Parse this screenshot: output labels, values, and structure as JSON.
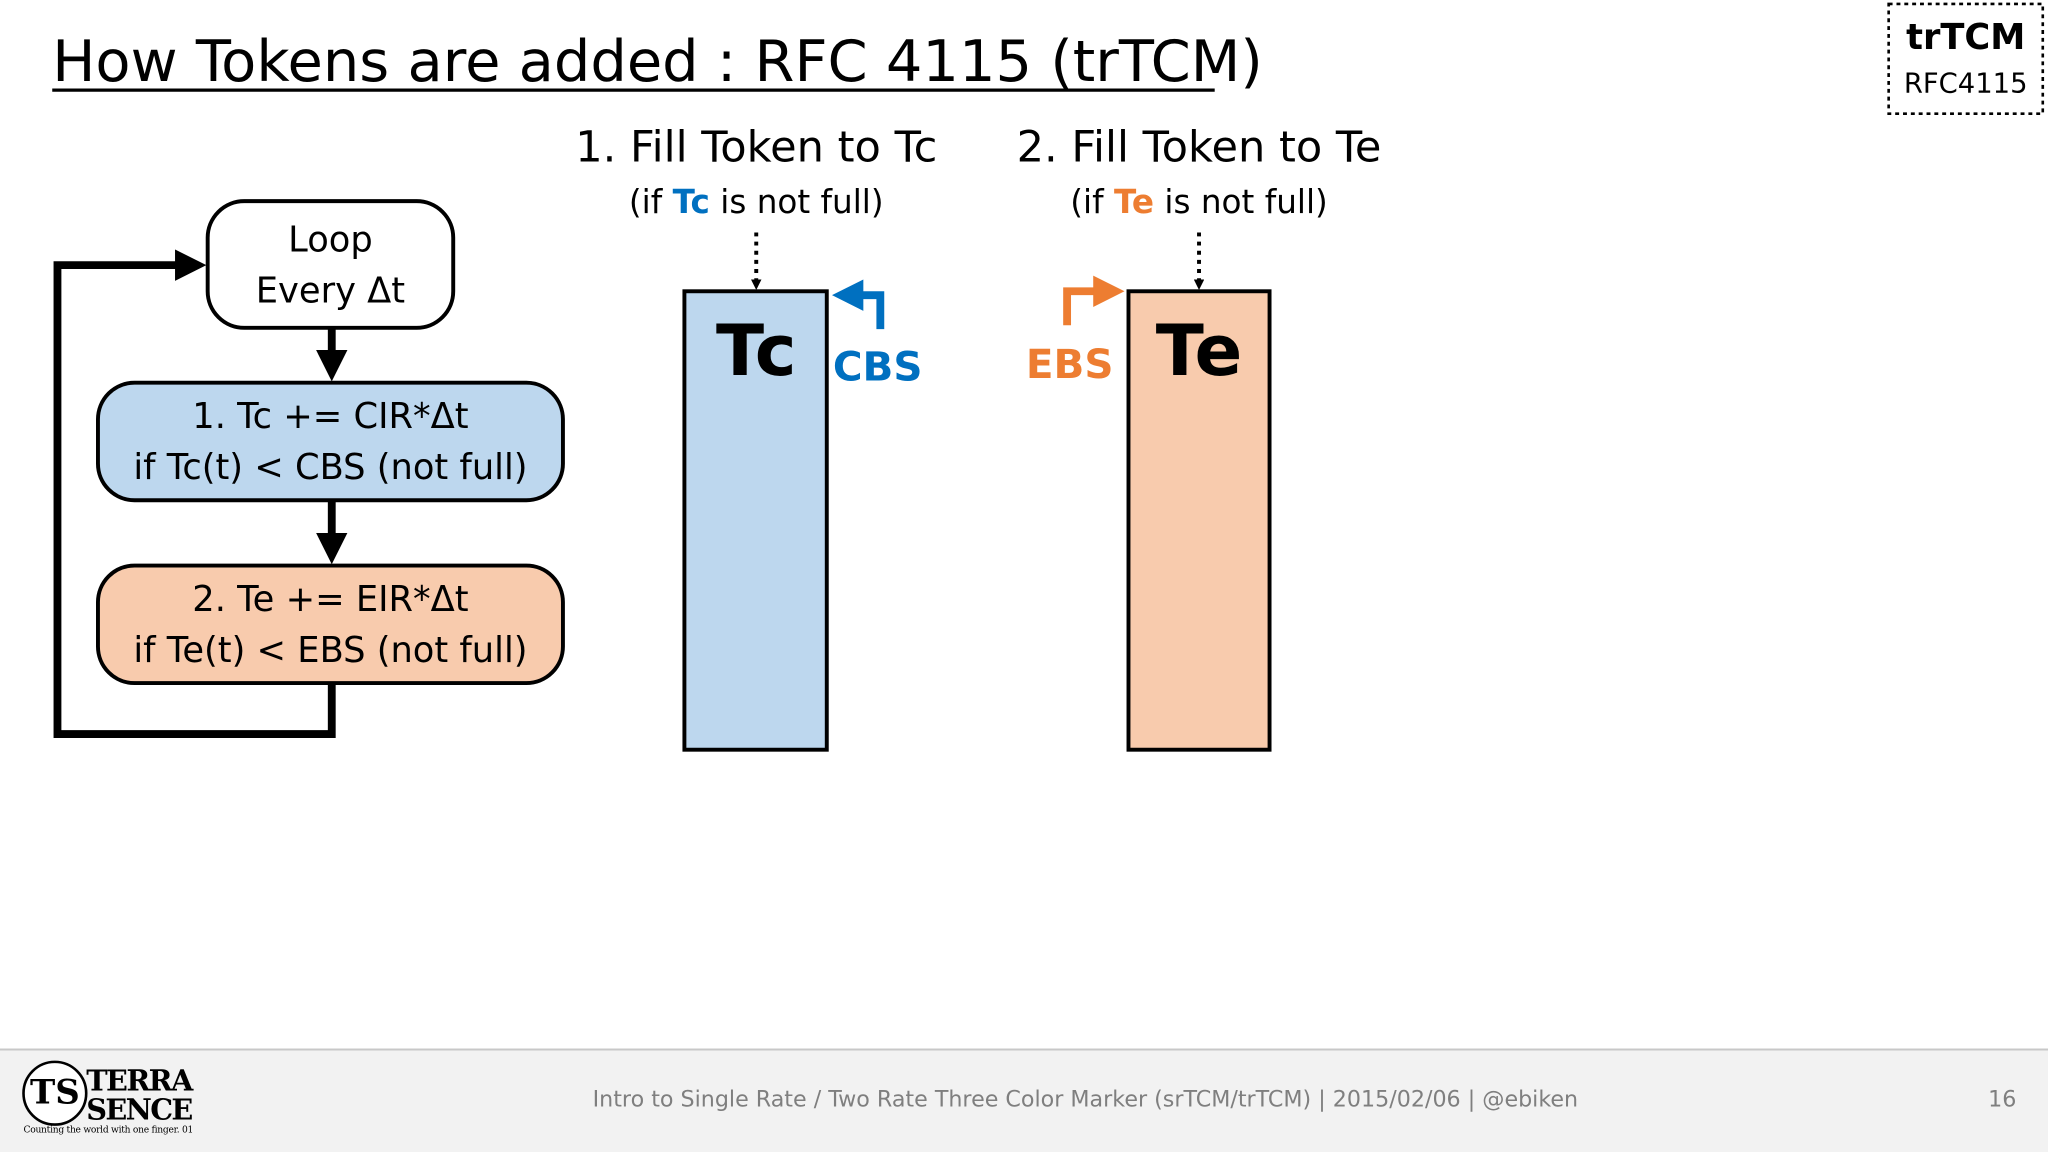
{
  "header": {
    "title": "How Tokens are added : RFC 4115 (trTCM)"
  },
  "badge": {
    "title": "trTCM",
    "subtitle": "RFC4115"
  },
  "flow": {
    "nodes": [
      {
        "lines": [
          "Loop",
          "Every Δt"
        ]
      },
      {
        "lines": [
          "1. Tc += CIR*Δt",
          "if Tc(t) < CBS (not full)"
        ]
      },
      {
        "lines": [
          "2. Te += EIR*Δt",
          "if Te(t) < EBS (not full)"
        ]
      }
    ]
  },
  "buckets": [
    {
      "heading": "1. Fill Token to Tc",
      "condition": {
        "before": "(if",
        "keyword": "Tc",
        "after": "is not full)"
      },
      "label": "Tc",
      "size_label": "CBS"
    },
    {
      "heading": "2. Fill Token to Te",
      "condition": {
        "before": "(if",
        "keyword": "Te",
        "after": "is not full)"
      },
      "label": "Te",
      "size_label": "EBS"
    }
  ],
  "footer": {
    "logo": {
      "mark": "TS",
      "top": "TERRA",
      "bottom": "SENCE",
      "tagline": "Counting the world with one finger. 01"
    },
    "text": "Intro to Single Rate / Two Rate Three Color Marker (srTCM/trTCM) | 2015/02/06 | @ebiken",
    "page": "16"
  }
}
